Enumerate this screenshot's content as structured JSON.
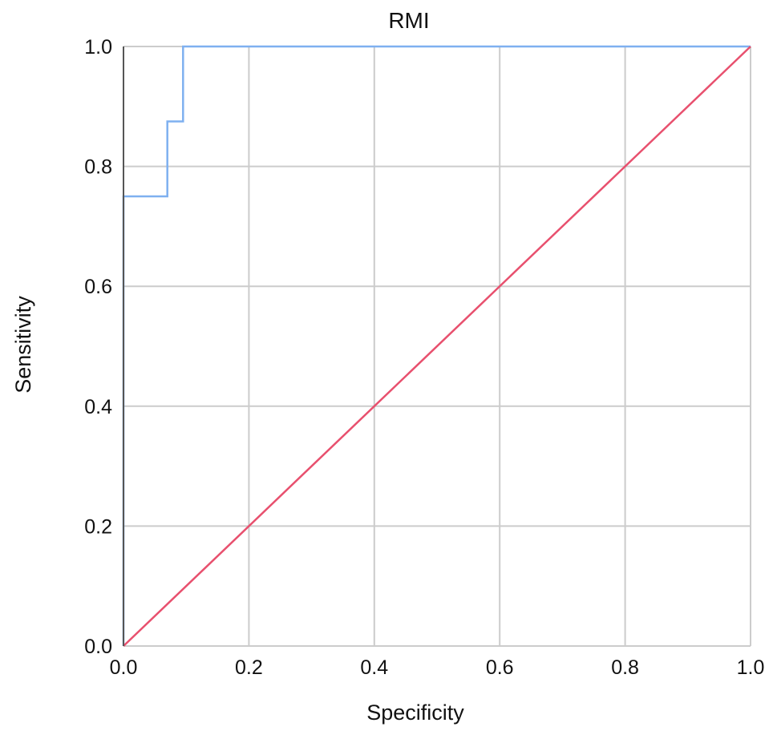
{
  "chart_data": {
    "type": "line",
    "title": "RMI",
    "xlabel": "Specificity",
    "ylabel": "Sensitivity",
    "xlim": [
      0.0,
      1.0
    ],
    "ylim": [
      0.0,
      1.0
    ],
    "grid": true,
    "x_ticks": [
      "0.0",
      "0.2",
      "0.4",
      "0.6",
      "0.8",
      "1.0"
    ],
    "y_ticks": [
      "0.0",
      "0.2",
      "0.4",
      "0.6",
      "0.8",
      "1.0"
    ],
    "series": [
      {
        "color": "#7fb0f0",
        "style": "step",
        "x": [
          0.0,
          0.0,
          0.07,
          0.07,
          0.095,
          0.095,
          1.0
        ],
        "y": [
          0.0,
          0.75,
          0.75,
          0.875,
          0.875,
          1.0,
          1.0
        ]
      },
      {
        "color": "#e8506e",
        "style": "reference",
        "x": [
          0.0,
          1.0
        ],
        "y": [
          0.0,
          1.0
        ]
      }
    ]
  },
  "colors": {
    "grid": "#cccccc",
    "axis": "#555555",
    "text": "#111111"
  }
}
